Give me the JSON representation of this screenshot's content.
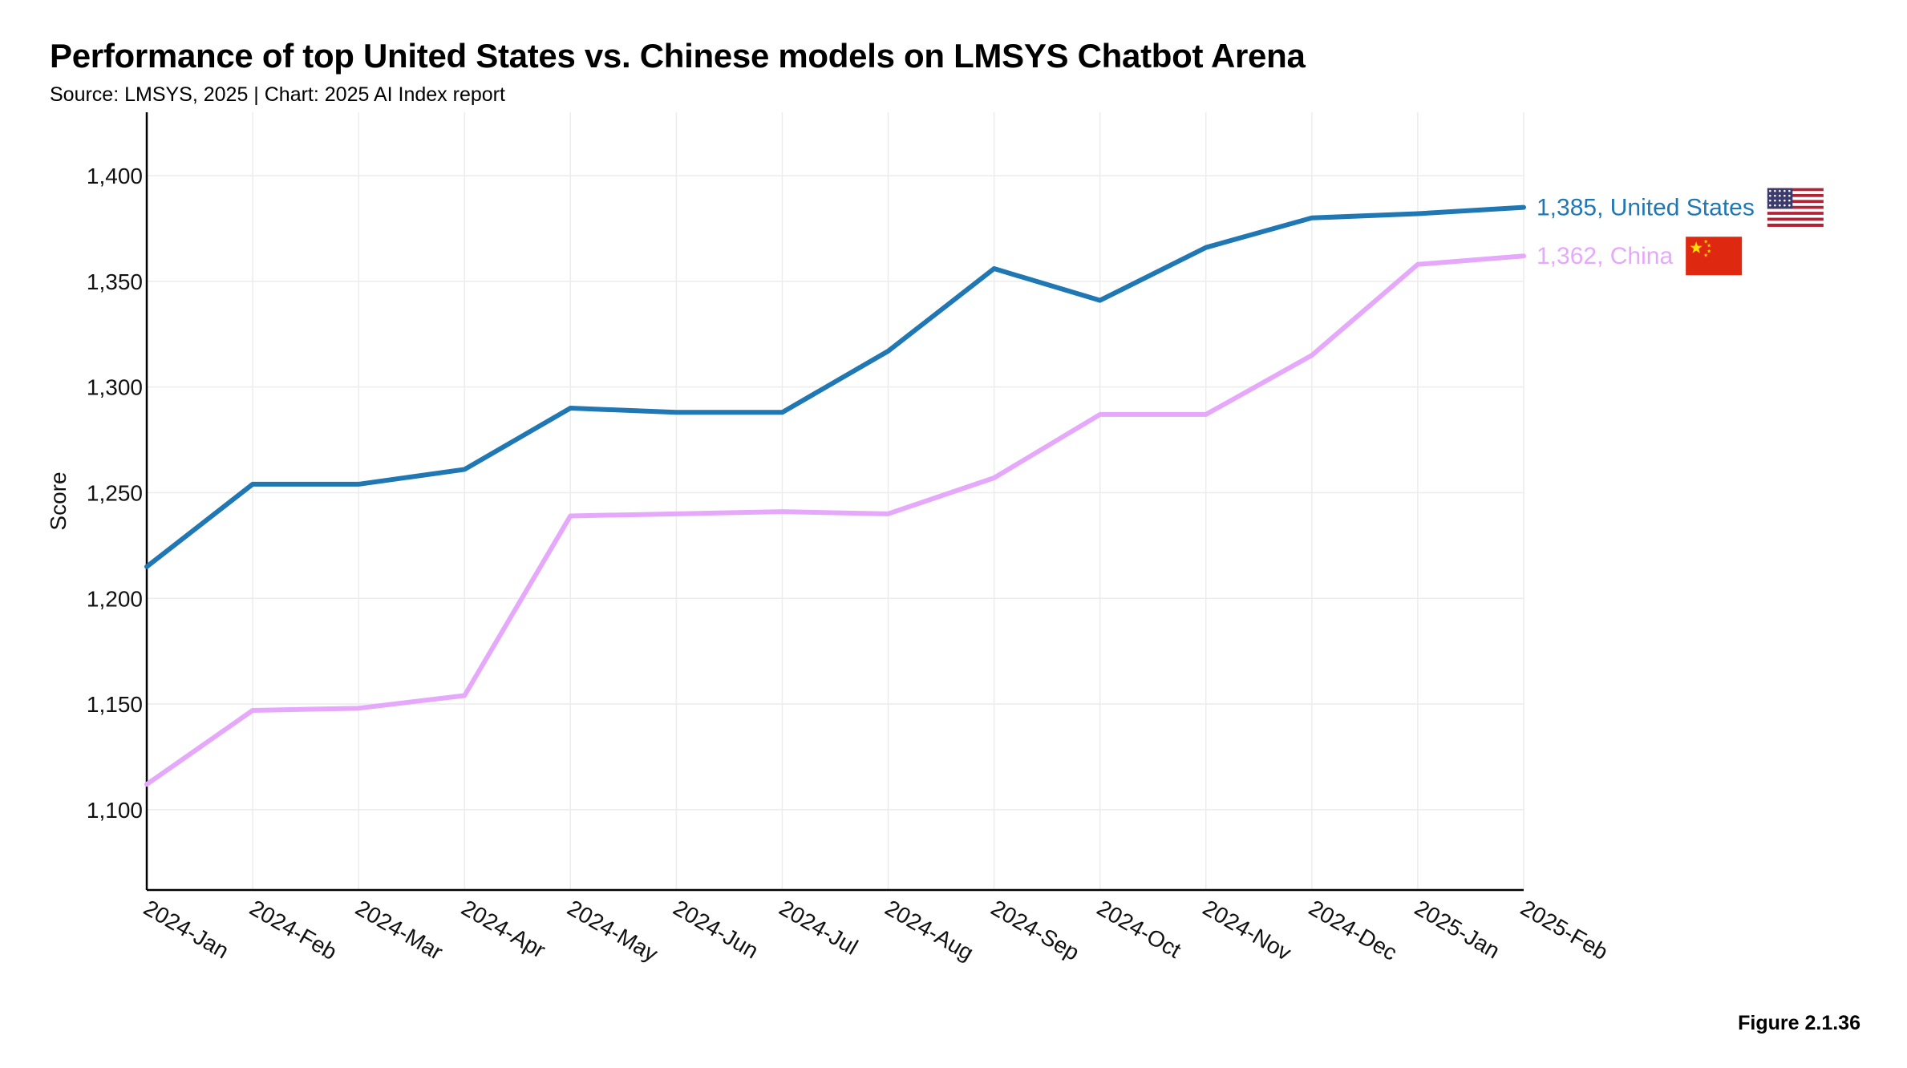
{
  "title": "Performance of top United States vs. Chinese models on LMSYS Chatbot Arena",
  "subtitle": "Source: LMSYS, 2025 | Chart: 2025 AI Index report",
  "figure_label": "Figure 2.1.36",
  "chart_data": {
    "type": "line",
    "xlabel": "",
    "ylabel": "Score",
    "categories": [
      "2024-Jan",
      "2024-Feb",
      "2024-Mar",
      "2024-Apr",
      "2024-May",
      "2024-Jun",
      "2024-Jul",
      "2024-Aug",
      "2024-Sep",
      "2024-Oct",
      "2024-Nov",
      "2024-Dec",
      "2025-Jan",
      "2025-Feb"
    ],
    "ylim": [
      1062,
      1430
    ],
    "yticks": [
      1100,
      1150,
      1200,
      1250,
      1300,
      1350,
      1400
    ],
    "ytick_labels": [
      "1,100",
      "1,150",
      "1,200",
      "1,250",
      "1,300",
      "1,350",
      "1,400"
    ],
    "grid": true,
    "series": [
      {
        "name": "United States",
        "color": "#1f77b4",
        "end_label": "1,385, United States",
        "flag_icon": "us-flag-icon",
        "values": [
          1215,
          1254,
          1254,
          1261,
          1290,
          1288,
          1288,
          1317,
          1356,
          1341,
          1366,
          1380,
          1382,
          1385
        ]
      },
      {
        "name": "China",
        "color": "#e6a8fb",
        "end_label": "1,362, China",
        "flag_icon": "china-flag-icon",
        "values": [
          1112,
          1147,
          1148,
          1154,
          1239,
          1240,
          1241,
          1240,
          1257,
          1287,
          1287,
          1315,
          1358,
          1362
        ]
      }
    ]
  }
}
